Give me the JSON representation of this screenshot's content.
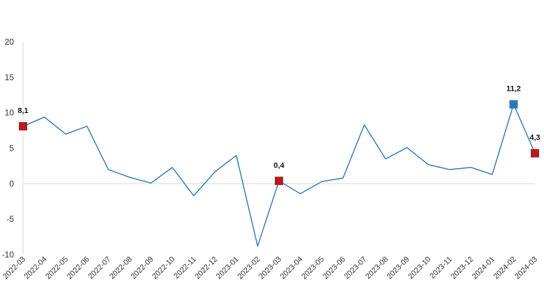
{
  "chart_data": {
    "type": "line",
    "title": "",
    "xlabel": "",
    "ylabel": "",
    "ylim": [
      -10,
      20
    ],
    "yticks": [
      -10,
      -5,
      0,
      5,
      10,
      15,
      20
    ],
    "ytick_labels": [
      "-10",
      "-5",
      "0",
      "5",
      "10",
      "15",
      "20"
    ],
    "grid": false,
    "zero_line": true,
    "line_color": "#2E75B6",
    "categories": [
      "2022-03",
      "2022-04",
      "2022-05",
      "2022-06",
      "2022-07",
      "2022-08",
      "2022-09",
      "2022-10",
      "2022-11",
      "2022-12",
      "2023-01",
      "2023-02",
      "2023-03",
      "2023-04",
      "2023-05",
      "2023-06",
      "2023-07",
      "2023-08",
      "2023-09",
      "2023-10",
      "2023-11",
      "2023-12",
      "2024-01",
      "2024-02",
      "2024-03"
    ],
    "series": [
      {
        "values": [
          8.1,
          9.4,
          7.0,
          8.1,
          2.0,
          0.9,
          0.1,
          2.3,
          -1.7,
          1.7,
          4.0,
          -8.8,
          0.4,
          -1.4,
          0.3,
          0.8,
          8.3,
          3.5,
          5.1,
          2.7,
          2.0,
          2.3,
          1.3,
          11.2,
          4.3
        ]
      }
    ],
    "highlights": [
      {
        "index": 0,
        "label": "8,1",
        "color": "#B01E22"
      },
      {
        "index": 12,
        "label": "0,4",
        "color": "#B01E22"
      },
      {
        "index": 23,
        "label": "11,2",
        "color": "#2E75B6"
      },
      {
        "index": 24,
        "label": "4,3",
        "color": "#B01E22"
      }
    ]
  }
}
